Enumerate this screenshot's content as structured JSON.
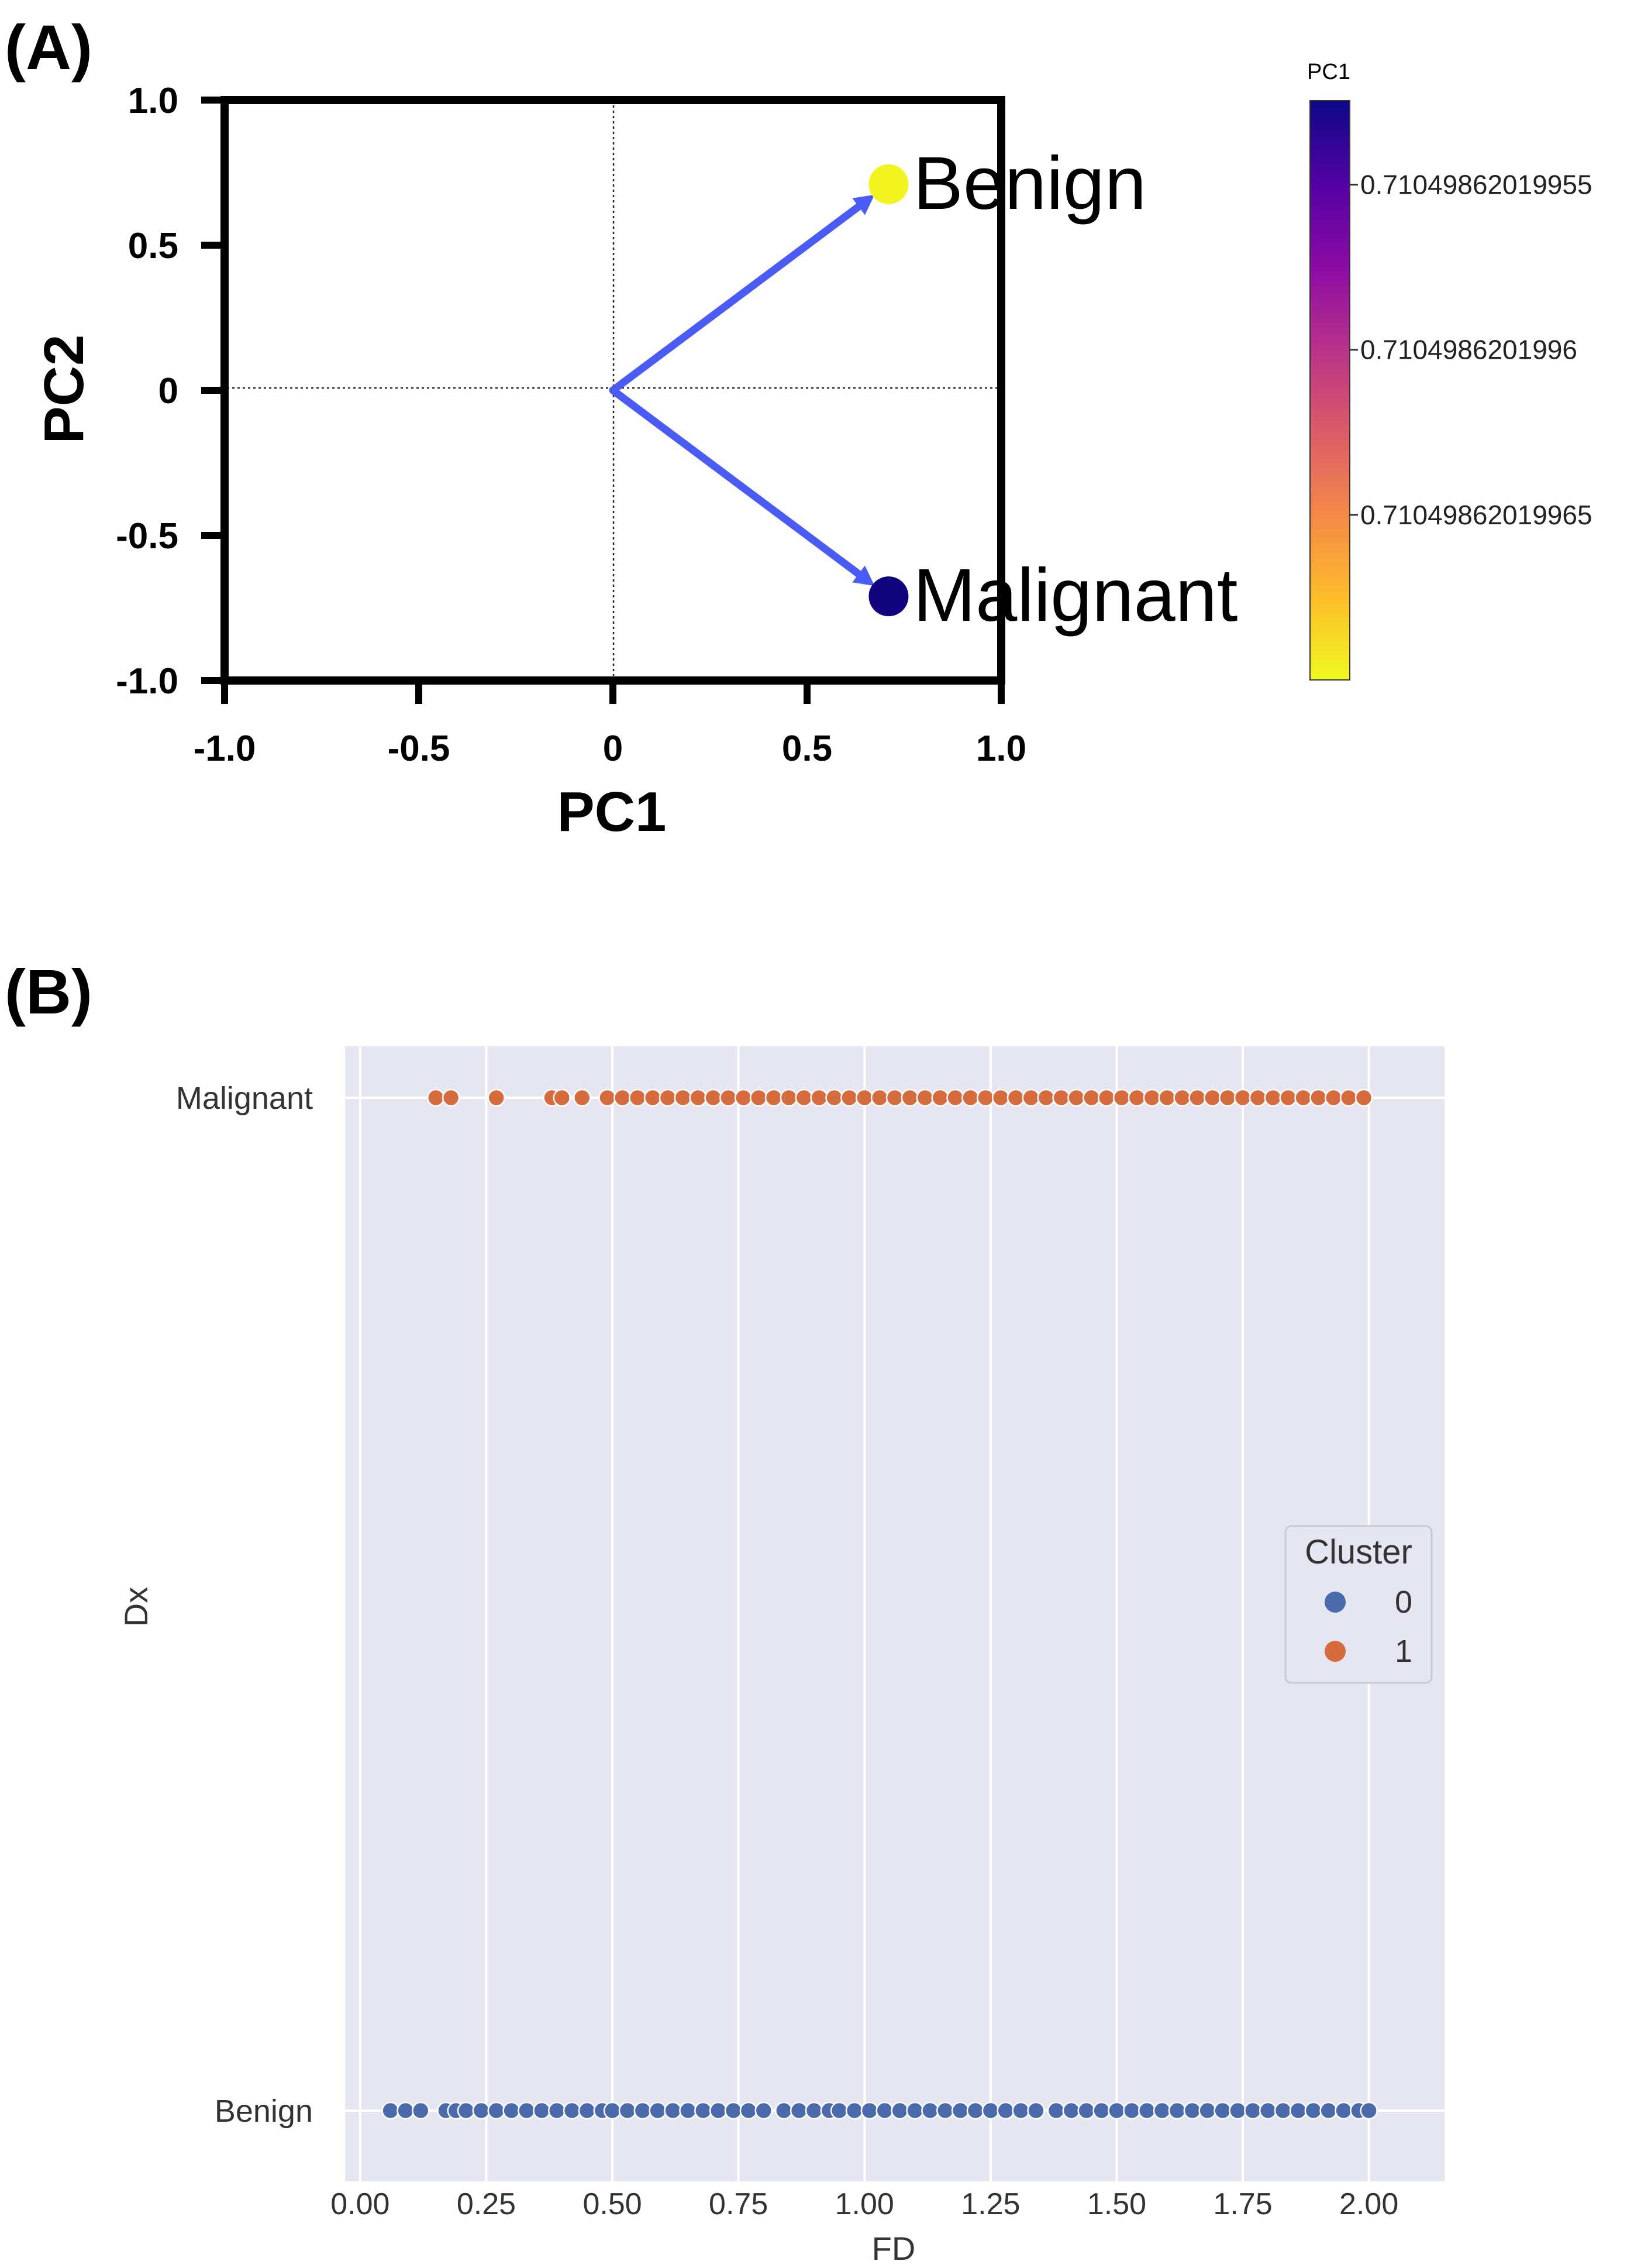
{
  "chart_data": [
    {
      "panel_label": "(A)",
      "type": "scatter",
      "subtype": "pca-loadings-biplot",
      "xlabel": "PC1",
      "ylabel": "PC2",
      "xlim": [
        -1.0,
        1.0
      ],
      "ylim": [
        -1.0,
        1.0
      ],
      "xticks": [
        -1.0,
        -0.5,
        0,
        0.5,
        1.0
      ],
      "xtick_labels": [
        "-1.0",
        "-0.5",
        "0",
        "0.5",
        "1.0"
      ],
      "yticks": [
        1.0,
        0.5,
        0,
        -0.5,
        -1.0
      ],
      "ytick_labels": [
        "1.0",
        "0.5",
        "0",
        "-0.5",
        "-1.0"
      ],
      "grid": false,
      "reference_lines": [
        0,
        0
      ],
      "arrow_color": "#4a5cf5",
      "points": [
        {
          "name": "Benign",
          "x": 0.71,
          "y": 0.71,
          "color": "#f3f31f"
        },
        {
          "name": "Malignant",
          "x": 0.71,
          "y": -0.71,
          "color": "#11037d"
        }
      ],
      "colorbar": {
        "title": "PC1",
        "colors": [
          "#0d0887",
          "#5302a3",
          "#8b0aa5",
          "#b83289",
          "#db5c68",
          "#f48849",
          "#febd2a",
          "#f0f921"
        ],
        "tick_labels": [
          "0.71049862019955",
          "0.7104986201996",
          "0.71049862019965"
        ],
        "tick_positions": [
          0.145,
          0.43,
          0.715
        ]
      }
    },
    {
      "panel_label": "(B)",
      "type": "scatter",
      "subtype": "strip",
      "xlabel": "FD",
      "ylabel": "Dx",
      "xlim": [
        -0.03,
        2.15
      ],
      "xticks": [
        0.0,
        0.25,
        0.5,
        0.75,
        1.0,
        1.25,
        1.5,
        1.75,
        2.0
      ],
      "xtick_labels": [
        "0.00",
        "0.25",
        "0.50",
        "0.75",
        "1.00",
        "1.25",
        "1.50",
        "1.75",
        "2.00"
      ],
      "categories": [
        "Malignant",
        "Benign"
      ],
      "grid": true,
      "background": "#e5e6f1",
      "legend": {
        "title": "Cluster",
        "placement": "right",
        "entries": [
          "0",
          "1"
        ]
      },
      "series": [
        {
          "name": "0",
          "category": "Benign",
          "color": "#4b6aab",
          "x": [
            0.06,
            0.09,
            0.12,
            0.17,
            0.19,
            0.21,
            0.24,
            0.27,
            0.3,
            0.33,
            0.36,
            0.39,
            0.42,
            0.45,
            0.48,
            0.5,
            0.53,
            0.56,
            0.59,
            0.62,
            0.65,
            0.68,
            0.71,
            0.74,
            0.77,
            0.8,
            0.84,
            0.87,
            0.9,
            0.93,
            0.95,
            0.98,
            1.01,
            1.04,
            1.07,
            1.1,
            1.13,
            1.16,
            1.19,
            1.22,
            1.25,
            1.28,
            1.31,
            1.34,
            1.38,
            1.41,
            1.44,
            1.47,
            1.5,
            1.53,
            1.56,
            1.59,
            1.62,
            1.65,
            1.68,
            1.71,
            1.74,
            1.77,
            1.8,
            1.83,
            1.86,
            1.89,
            1.92,
            1.95,
            1.98,
            2.0
          ]
        },
        {
          "name": "1",
          "category": "Malignant",
          "color": "#d66b3e",
          "x": [
            0.15,
            0.18,
            0.27,
            0.38,
            0.4,
            0.44,
            0.49,
            0.52,
            0.55,
            0.58,
            0.61,
            0.64,
            0.67,
            0.7,
            0.73,
            0.76,
            0.79,
            0.82,
            0.85,
            0.88,
            0.91,
            0.94,
            0.97,
            1.0,
            1.03,
            1.06,
            1.09,
            1.12,
            1.15,
            1.18,
            1.21,
            1.24,
            1.27,
            1.3,
            1.33,
            1.36,
            1.39,
            1.42,
            1.45,
            1.48,
            1.51,
            1.54,
            1.57,
            1.6,
            1.63,
            1.66,
            1.69,
            1.72,
            1.75,
            1.78,
            1.81,
            1.84,
            1.87,
            1.9,
            1.93,
            1.96,
            1.99
          ]
        }
      ]
    }
  ]
}
